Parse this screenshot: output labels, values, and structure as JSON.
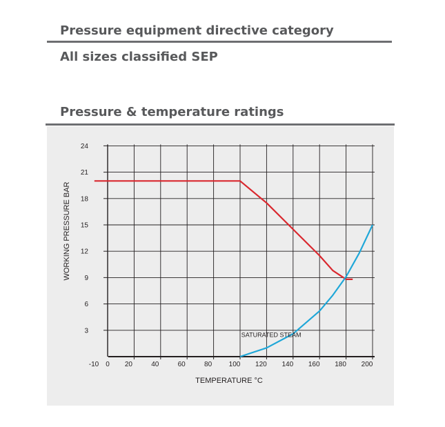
{
  "sections": {
    "ped_title": "Pressure equipment directive category",
    "ped_value": "All sizes classified SEP",
    "rating_title": "Pressure & temperature ratings"
  },
  "chart_data": {
    "type": "line",
    "xlabel": "TEMPERATURE °C",
    "ylabel": "WORKING PRESSURE BAR",
    "xlim": [
      -10,
      200
    ],
    "ylim": [
      0,
      24
    ],
    "x_ticks": [
      "-10",
      "0",
      "20",
      "40",
      "60",
      "80",
      "100",
      "120",
      "140",
      "160",
      "180",
      "200"
    ],
    "y_ticks": [
      "3",
      "6",
      "9",
      "12",
      "15",
      "18",
      "21",
      "24"
    ],
    "grid": true,
    "series": [
      {
        "color": "#d9272e",
        "x": [
          -10,
          100,
          120,
          140,
          160,
          170,
          180,
          185
        ],
        "y": [
          20,
          20,
          17.5,
          14.5,
          11.5,
          9.8,
          8.8,
          8.8
        ]
      },
      {
        "name": "SATURATED STEAM",
        "color": "#1fa7d8",
        "x": [
          100,
          120,
          140,
          160,
          170,
          180,
          190,
          200
        ],
        "y": [
          0,
          1,
          2.6,
          5.2,
          7,
          9.1,
          11.8,
          15
        ]
      }
    ],
    "annotations": [
      {
        "text": "SATURATED STEAM",
        "x": 115,
        "y": 2
      }
    ]
  }
}
